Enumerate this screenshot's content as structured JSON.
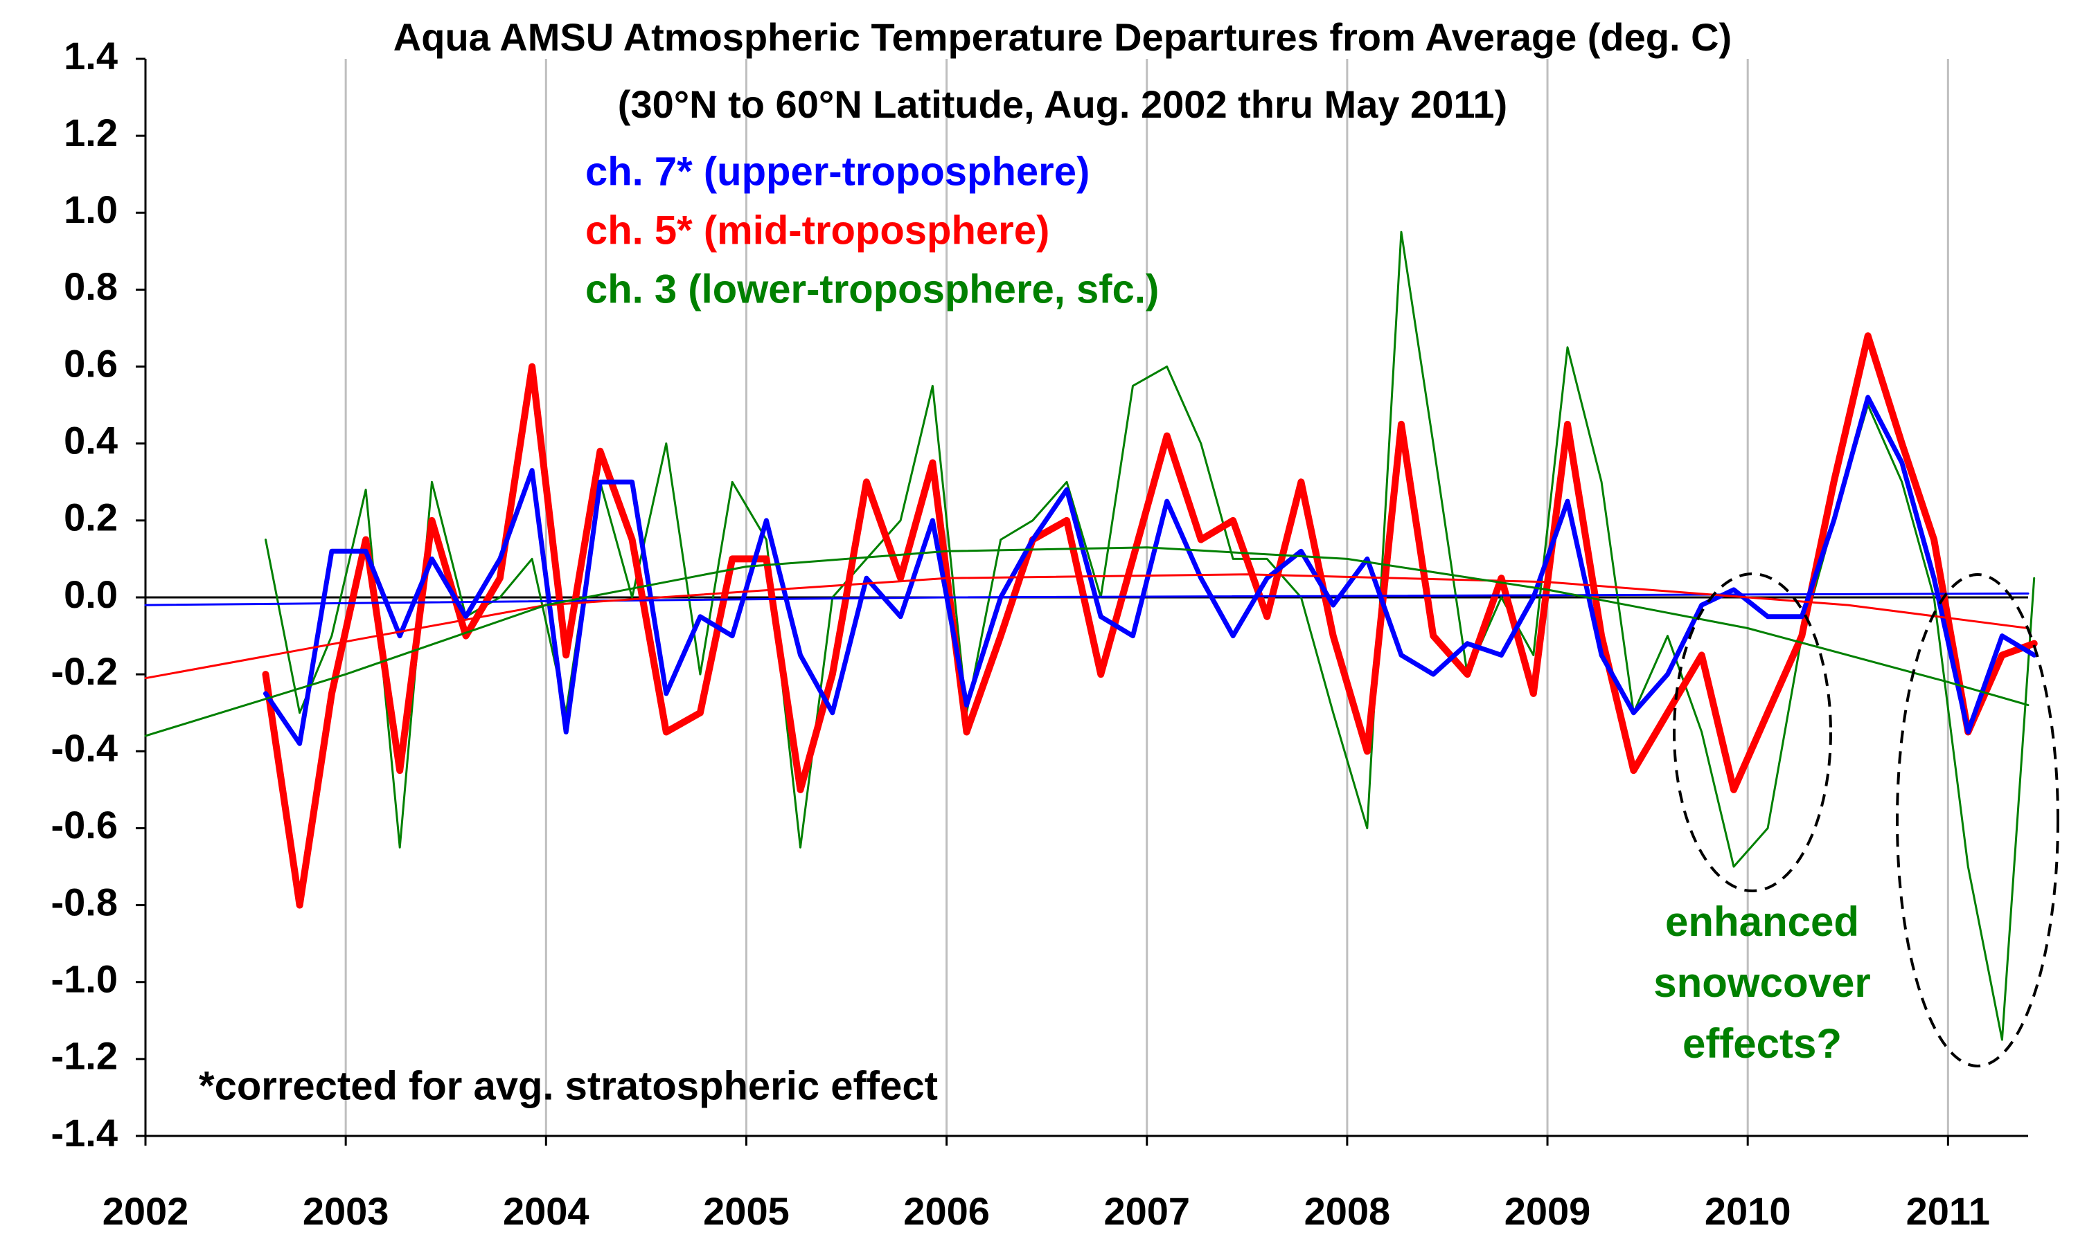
{
  "chart_data": {
    "type": "line",
    "title": "Aqua AMSU Atmospheric Temperature Departures from Average (deg. C)",
    "subtitle": "(30°N to 60°N Latitude, Aug. 2002 thru May 2011)",
    "annotations": [
      "*corrected for avg. stratospheric effect"
    ],
    "callout": {
      "lines": [
        "enhanced",
        "snowcover",
        "effects?"
      ],
      "color": "#008000"
    },
    "xlim": [
      2002,
      2011.4
    ],
    "xticks": [
      2002,
      2003,
      2004,
      2005,
      2006,
      2007,
      2008,
      2009,
      2010,
      2011
    ],
    "ylim": [
      -1.4,
      1.4
    ],
    "yticks": [
      1.4,
      1.2,
      {
        "value": 1,
        "label": "1.0"
      },
      0.8,
      0.6,
      0.4,
      0.2,
      {
        "value": 0,
        "label": "0.0"
      },
      -0.2,
      -0.4,
      -0.6,
      -0.8,
      {
        "value": -1,
        "label": "-1.0"
      },
      -1.2,
      -1.4
    ],
    "grid": "x",
    "x": [
      2002.6,
      2002.77,
      2002.93,
      2003.1,
      2003.27,
      2003.43,
      2003.6,
      2003.77,
      2003.93,
      2004.1,
      2004.27,
      2004.43,
      2004.6,
      2004.77,
      2004.93,
      2005.1,
      2005.27,
      2005.43,
      2005.6,
      2005.77,
      2005.93,
      2006.1,
      2006.27,
      2006.43,
      2006.6,
      2006.77,
      2006.93,
      2007.1,
      2007.27,
      2007.43,
      2007.6,
      2007.77,
      2007.93,
      2008.1,
      2008.27,
      2008.43,
      2008.6,
      2008.77,
      2008.93,
      2009.1,
      2009.27,
      2009.43,
      2009.6,
      2009.77,
      2009.93,
      2010.1,
      2010.27,
      2010.43,
      2010.6,
      2010.77,
      2010.93,
      2011.1,
      2011.27,
      2011.43
    ],
    "series": [
      {
        "name": "ch. 3 (lower-troposphere, sfc.)",
        "color": "#008000",
        "width": 3,
        "values": [
          0.15,
          -0.3,
          -0.1,
          0.28,
          -0.65,
          0.3,
          -0.05,
          0,
          0.1,
          -0.3,
          0.3,
          0,
          0.4,
          -0.2,
          0.3,
          0.15,
          -0.65,
          0,
          0.1,
          0.2,
          0.55,
          -0.3,
          0.15,
          0.2,
          0.3,
          0,
          0.55,
          0.6,
          0.4,
          0.1,
          0.1,
          0,
          -0.3,
          -0.6,
          0.95,
          0.4,
          -0.2,
          0,
          -0.15,
          0.65,
          0.3,
          -0.3,
          -0.1,
          -0.35,
          -0.7,
          -0.6,
          -0.1,
          0.2,
          0.5,
          0.3,
          0,
          -0.7,
          -1.15,
          0.05
        ]
      },
      {
        "name": "ch. 5* (mid-troposphere)",
        "color": "#ff0000",
        "width": 10,
        "values": [
          -0.2,
          -0.8,
          -0.25,
          0.15,
          -0.45,
          0.2,
          -0.1,
          0.05,
          0.6,
          -0.15,
          0.38,
          0.15,
          -0.35,
          -0.3,
          0.1,
          0.1,
          -0.5,
          -0.2,
          0.3,
          0.05,
          0.35,
          -0.35,
          -0.1,
          0.15,
          0.2,
          -0.2,
          0.1,
          0.42,
          0.15,
          0.2,
          -0.05,
          0.3,
          -0.1,
          -0.4,
          0.45,
          -0.1,
          -0.2,
          0.05,
          -0.25,
          0.45,
          -0.1,
          -0.45,
          -0.3,
          -0.15,
          -0.5,
          -0.3,
          -0.1,
          0.3,
          0.68,
          0.4,
          0.15,
          -0.35,
          -0.15,
          -0.12
        ]
      },
      {
        "name": "ch. 7* (upper-troposphere)",
        "color": "#0000ff",
        "width": 7,
        "values": [
          -0.25,
          -0.38,
          0.12,
          0.12,
          -0.1,
          0.1,
          -0.05,
          0.1,
          0.33,
          -0.35,
          0.3,
          0.3,
          -0.25,
          -0.05,
          -0.1,
          0.2,
          -0.15,
          -0.3,
          0.05,
          -0.05,
          0.2,
          -0.28,
          0,
          0.15,
          0.28,
          -0.05,
          -0.1,
          0.25,
          0.05,
          -0.1,
          0.05,
          0.12,
          -0.02,
          0.1,
          -0.15,
          -0.2,
          -0.12,
          -0.15,
          0,
          0.25,
          -0.15,
          -0.3,
          -0.2,
          -0.02,
          0.02,
          -0.05,
          -0.05,
          0.2,
          0.52,
          0.35,
          0.05,
          -0.35,
          -0.1,
          -0.15
        ]
      }
    ],
    "legend_order": [
      2,
      1,
      0
    ],
    "trend_lines": [
      {
        "color": "#0000ff",
        "x": [
          2002,
          2006,
          2011.4
        ],
        "values": [
          -0.02,
          0,
          0.01
        ]
      },
      {
        "color": "#ff0000",
        "x": [
          2002,
          2004,
          2006,
          2007.5,
          2009,
          2010.5,
          2011.4
        ],
        "values": [
          -0.21,
          -0.02,
          0.05,
          0.06,
          0.04,
          -0.02,
          -0.08
        ]
      },
      {
        "color": "#008000",
        "x": [
          2002,
          2003,
          2004,
          2005,
          2006,
          2007,
          2008,
          2009,
          2010,
          2011,
          2011.4
        ],
        "values": [
          -0.36,
          -0.2,
          -0.02,
          0.08,
          0.12,
          0.13,
          0.1,
          0.02,
          -0.08,
          -0.22,
          -0.28
        ]
      }
    ],
    "zero_line": {
      "value": 0,
      "color": "#000000"
    }
  }
}
